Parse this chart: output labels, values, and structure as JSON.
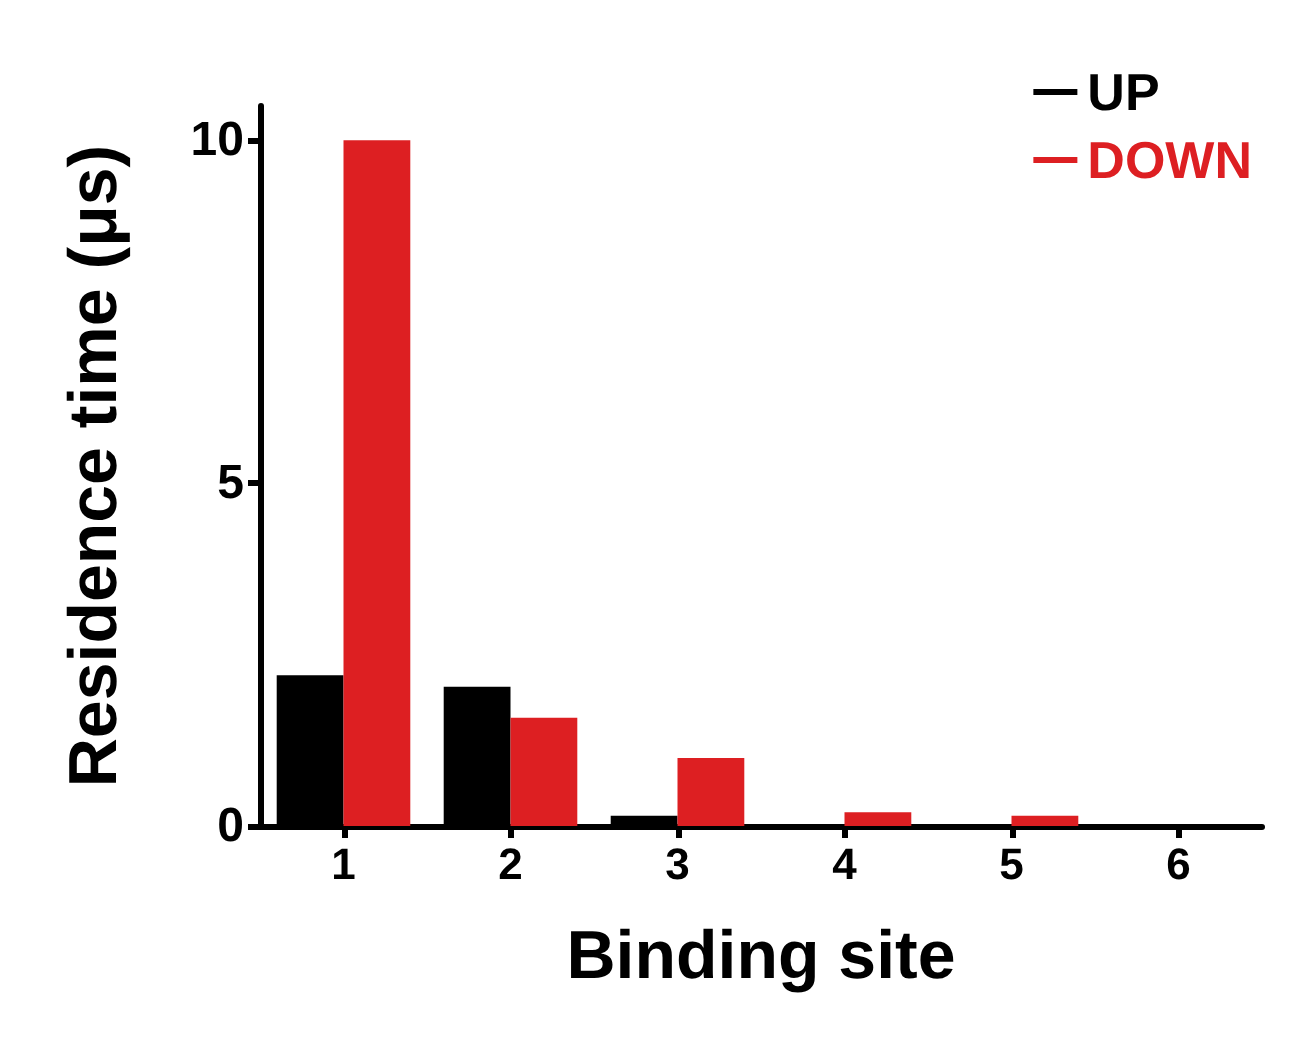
{
  "chart_data": {
    "type": "bar",
    "xlabel": "Binding site",
    "ylabel": "Residence time (μs)",
    "categories": [
      "1",
      "2",
      "3",
      "4",
      "5",
      "6"
    ],
    "series": [
      {
        "name": "UP",
        "color": "#000000",
        "values": [
          2.2,
          2.03,
          0.15,
          0,
          0,
          0
        ]
      },
      {
        "name": "DOWN",
        "color": "#dd1f22",
        "values": [
          10.0,
          1.58,
          0.99,
          0.2,
          0.15,
          0
        ]
      }
    ],
    "ylim": [
      0,
      10.5
    ],
    "yticks": [
      0,
      5,
      10
    ],
    "grid": false,
    "legend": "top right"
  }
}
